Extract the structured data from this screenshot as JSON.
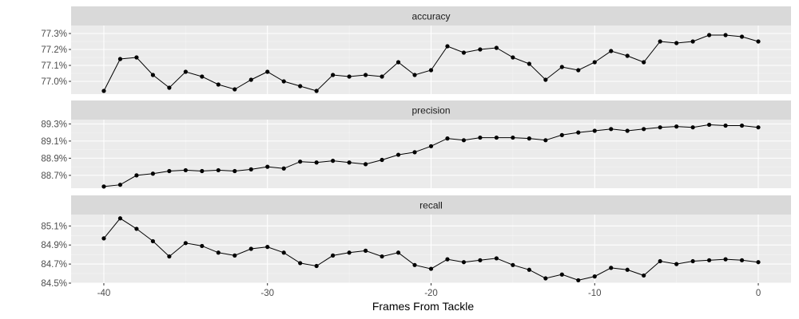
{
  "chart_data": {
    "type": "line",
    "layout": "faceted-vertical",
    "xlabel": "Frames From Tackle",
    "xlim": [
      -42,
      2
    ],
    "x_ticks": [
      -40,
      -30,
      -20,
      -10,
      0
    ],
    "x_tick_labels": [
      "-40",
      "-30",
      "-20",
      "-10",
      "0"
    ],
    "x": [
      -40,
      -39,
      -38,
      -37,
      -36,
      -35,
      -34,
      -33,
      -32,
      -31,
      -30,
      -29,
      -28,
      -27,
      -26,
      -25,
      -24,
      -23,
      -22,
      -21,
      -20,
      -19,
      -18,
      -17,
      -16,
      -15,
      -14,
      -13,
      -12,
      -11,
      -10,
      -9,
      -8,
      -7,
      -6,
      -5,
      -4,
      -3,
      -2,
      -1,
      0
    ],
    "grid": true,
    "panels": [
      {
        "name": "accuracy",
        "ylim": [
          76.92,
          77.35
        ],
        "y_ticks": [
          77.0,
          77.1,
          77.2,
          77.3
        ],
        "y_tick_labels": [
          "77.0%",
          "77.1%",
          "77.2%",
          "77.3%"
        ],
        "values": [
          76.94,
          77.14,
          77.15,
          77.04,
          76.96,
          77.06,
          77.03,
          76.98,
          76.95,
          77.01,
          77.06,
          77.0,
          76.97,
          76.94,
          77.04,
          77.03,
          77.04,
          77.03,
          77.12,
          77.04,
          77.07,
          77.22,
          77.18,
          77.2,
          77.21,
          77.15,
          77.11,
          77.01,
          77.09,
          77.07,
          77.12,
          77.19,
          77.16,
          77.12,
          77.25,
          77.24,
          77.25,
          77.29,
          77.29,
          77.28,
          77.25
        ]
      },
      {
        "name": "precision",
        "ylim": [
          88.55,
          89.35
        ],
        "y_ticks": [
          88.7,
          88.9,
          89.1,
          89.3
        ],
        "y_tick_labels": [
          "88.7%",
          "88.9%",
          "89.1%",
          "89.3%"
        ],
        "values": [
          88.57,
          88.59,
          88.7,
          88.72,
          88.75,
          88.76,
          88.75,
          88.76,
          88.75,
          88.77,
          88.8,
          88.78,
          88.86,
          88.85,
          88.87,
          88.85,
          88.83,
          88.88,
          88.94,
          88.97,
          89.04,
          89.13,
          89.11,
          89.14,
          89.14,
          89.14,
          89.13,
          89.11,
          89.17,
          89.2,
          89.22,
          89.24,
          89.22,
          89.24,
          89.26,
          89.27,
          89.26,
          89.29,
          89.28,
          89.28,
          89.26
        ]
      },
      {
        "name": "recall",
        "ylim": [
          84.5,
          85.22
        ],
        "y_ticks": [
          84.5,
          84.7,
          84.9,
          85.1
        ],
        "y_tick_labels": [
          "84.5%",
          "84.7%",
          "84.9%",
          "85.1%"
        ],
        "values": [
          84.97,
          85.18,
          85.07,
          84.94,
          84.78,
          84.92,
          84.89,
          84.82,
          84.79,
          84.86,
          84.88,
          84.82,
          84.71,
          84.68,
          84.79,
          84.82,
          84.84,
          84.78,
          84.82,
          84.69,
          84.65,
          84.75,
          84.72,
          84.74,
          84.76,
          84.69,
          84.64,
          84.55,
          84.59,
          84.53,
          84.57,
          84.66,
          84.64,
          84.58,
          84.73,
          84.7,
          84.73,
          84.74,
          84.75,
          84.74,
          84.72
        ]
      }
    ]
  }
}
